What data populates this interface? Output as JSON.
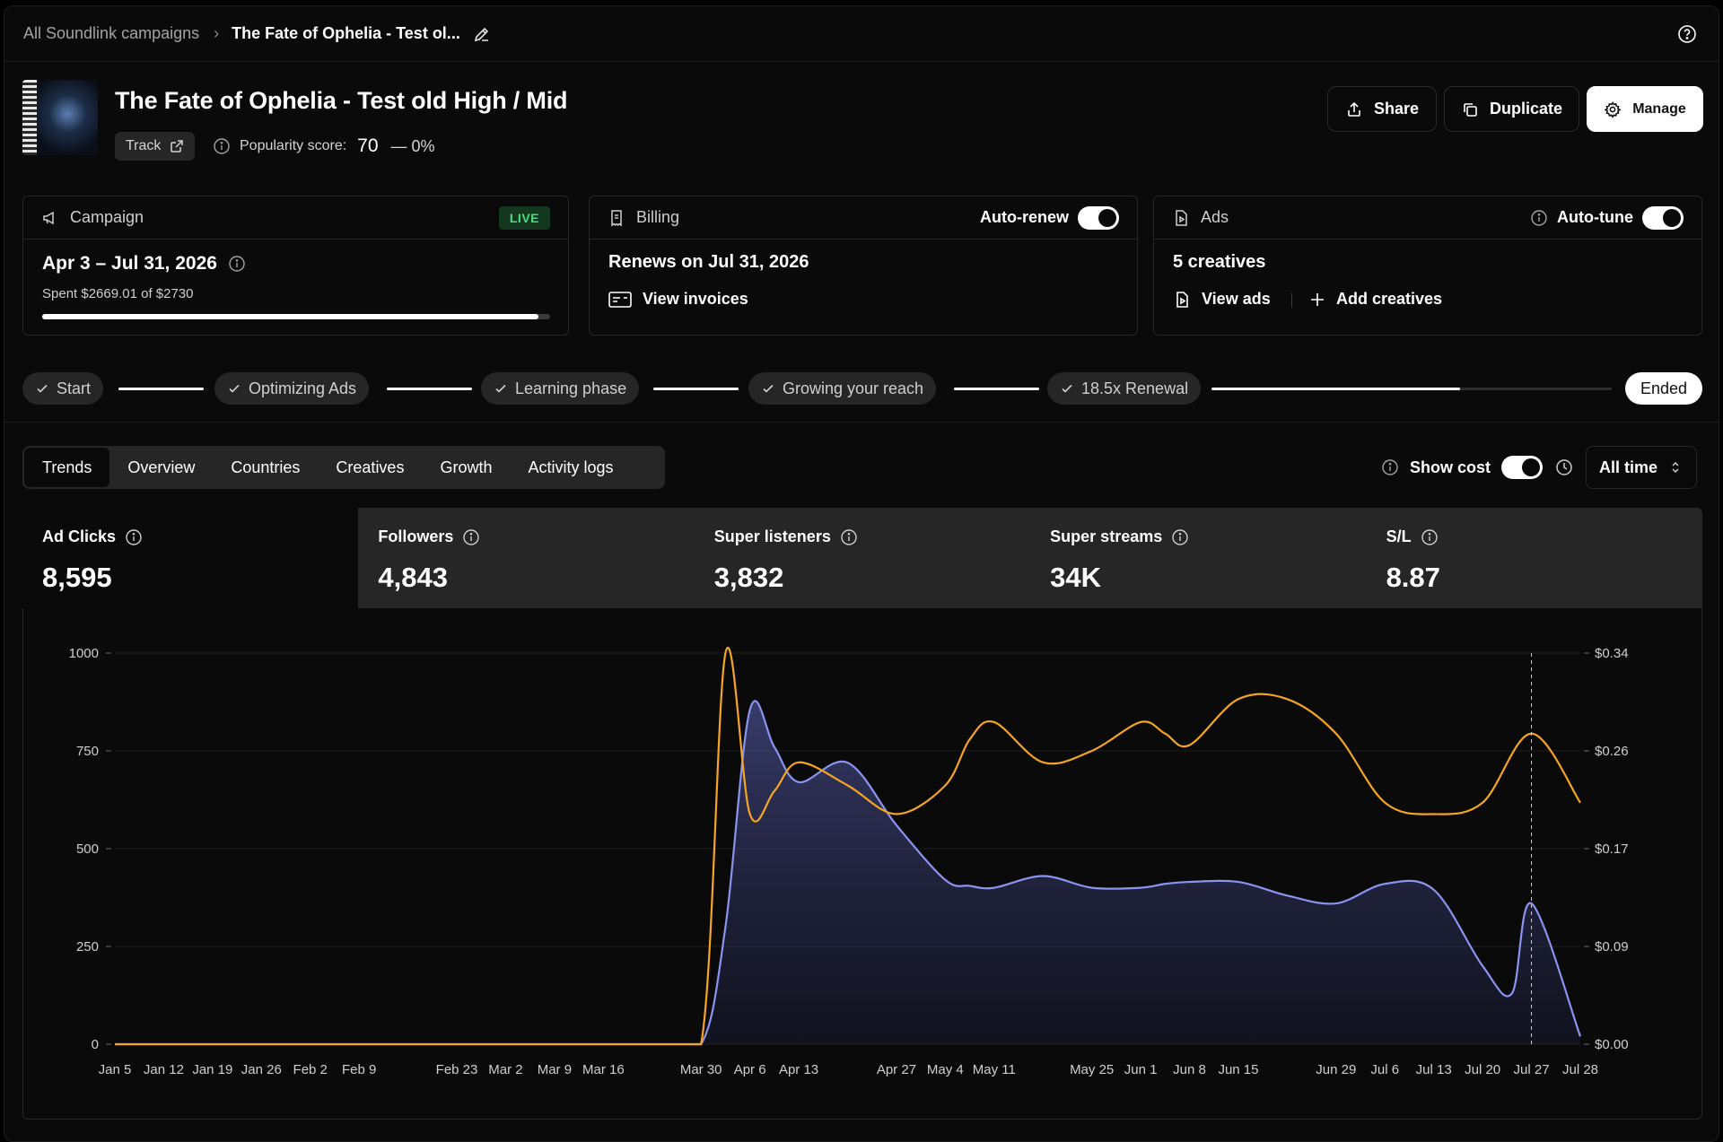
{
  "breadcrumb": {
    "root": "All Soundlink campaigns",
    "current": "The Fate of Ophelia - Test ol..."
  },
  "header": {
    "title": "The Fate of Ophelia - Test old High / Mid",
    "track_label": "Track",
    "popularity_label": "Popularity score:",
    "popularity_score": "70",
    "popularity_change": "— 0%",
    "share": "Share",
    "duplicate": "Duplicate",
    "manage": "Manage"
  },
  "campaign_card": {
    "title": "Campaign",
    "badge": "LIVE",
    "dates": "Apr 3 – Jul 31, 2026",
    "spent": "Spent $2669.01 of $2730",
    "progress": 0.9777
  },
  "billing_card": {
    "title": "Billing",
    "toggle_label": "Auto-renew",
    "renews": "Renews on Jul 31, 2026",
    "link": "View invoices"
  },
  "ads_card": {
    "title": "Ads",
    "toggle_label": "Auto-tune",
    "creatives": "5 creatives",
    "view_ads": "View ads",
    "add_creatives": "Add creatives"
  },
  "steps": {
    "items": [
      "Start",
      "Optimizing Ads",
      "Learning phase",
      "Growing your reach",
      "18.5x Renewal"
    ],
    "final": "Ended",
    "last_segment_progress": 0.62
  },
  "tabs": [
    "Trends",
    "Overview",
    "Countries",
    "Creatives",
    "Growth",
    "Activity logs"
  ],
  "controls": {
    "show_cost": "Show cost",
    "range": "All time"
  },
  "metrics": [
    {
      "label": "Ad Clicks",
      "value": "8,595"
    },
    {
      "label": "Followers",
      "value": "4,843"
    },
    {
      "label": "Super listeners",
      "value": "3,832"
    },
    {
      "label": "Super streams",
      "value": "34K"
    },
    {
      "label": "S/L",
      "value": "8.87"
    }
  ],
  "colors": {
    "clicks": "#8b93f0",
    "cost": "#f5a524",
    "live_green": "#4ade80"
  },
  "chart_data": {
    "type": "area",
    "y_left": {
      "ticks": [
        "0",
        "250",
        "500",
        "750",
        "1000"
      ],
      "lim": [
        0,
        1000
      ]
    },
    "y_right": {
      "ticks": [
        "$0.00",
        "$0.09",
        "$0.17",
        "$0.26",
        "$0.34"
      ],
      "lim": [
        0,
        0.34
      ]
    },
    "x_tick_labels": [
      "Jan 5",
      "Jan 12",
      "Jan 19",
      "Jan 26",
      "Feb 2",
      "Feb 9",
      "Feb 23",
      "Mar 2",
      "Mar 9",
      "Mar 16",
      "Mar 30",
      "Apr 6",
      "Apr 13",
      "Apr 27",
      "May 4",
      "May 11",
      "May 25",
      "Jun 1",
      "Jun 8",
      "Jun 15",
      "Jun 29",
      "Jul 6",
      "Jul 13",
      "Jul 20",
      "Jul 27",
      "Jul 28"
    ],
    "x_tick_weeks": [
      0,
      1,
      2,
      3,
      4,
      5,
      7,
      8,
      9,
      10,
      12,
      13,
      14,
      16,
      17,
      18,
      20,
      21,
      22,
      23,
      25,
      26,
      27,
      28,
      29,
      30
    ],
    "grid": true,
    "marker_week": 29,
    "series": [
      {
        "axis": "left",
        "color": "#8b93f0",
        "fill": true,
        "x": [
          0,
          1,
          2,
          3,
          4,
          5,
          6,
          7,
          8,
          9,
          10,
          11,
          12,
          12.5,
          13,
          13.5,
          14,
          15,
          16,
          17,
          17.5,
          18,
          19,
          20,
          21,
          21.5,
          22,
          23,
          24,
          25,
          26,
          27,
          28,
          28.6,
          29,
          30
        ],
        "y": [
          0,
          0,
          0,
          0,
          0,
          0,
          0,
          0,
          0,
          0,
          0,
          0,
          0,
          300,
          855,
          760,
          670,
          720,
          560,
          420,
          405,
          400,
          430,
          400,
          400,
          410,
          415,
          415,
          380,
          360,
          410,
          395,
          200,
          130,
          360,
          20
        ]
      },
      {
        "axis": "right",
        "color": "#f5a524",
        "fill": false,
        "x": [
          0,
          1,
          2,
          3,
          4,
          5,
          6,
          7,
          8,
          9,
          10,
          11,
          12,
          12.5,
          13,
          13.5,
          14,
          15,
          16,
          17,
          17.5,
          18,
          19,
          20,
          21,
          21.5,
          22,
          23,
          24,
          25,
          26,
          27,
          28,
          29,
          30
        ],
        "y": [
          0,
          0,
          0,
          0,
          0,
          0,
          0,
          0,
          0,
          0,
          0,
          0,
          0,
          0.34,
          0.2,
          0.22,
          0.245,
          0.225,
          0.2,
          0.225,
          0.265,
          0.28,
          0.245,
          0.255,
          0.28,
          0.27,
          0.26,
          0.3,
          0.3,
          0.27,
          0.21,
          0.2,
          0.21,
          0.27,
          0.21
        ]
      }
    ]
  }
}
